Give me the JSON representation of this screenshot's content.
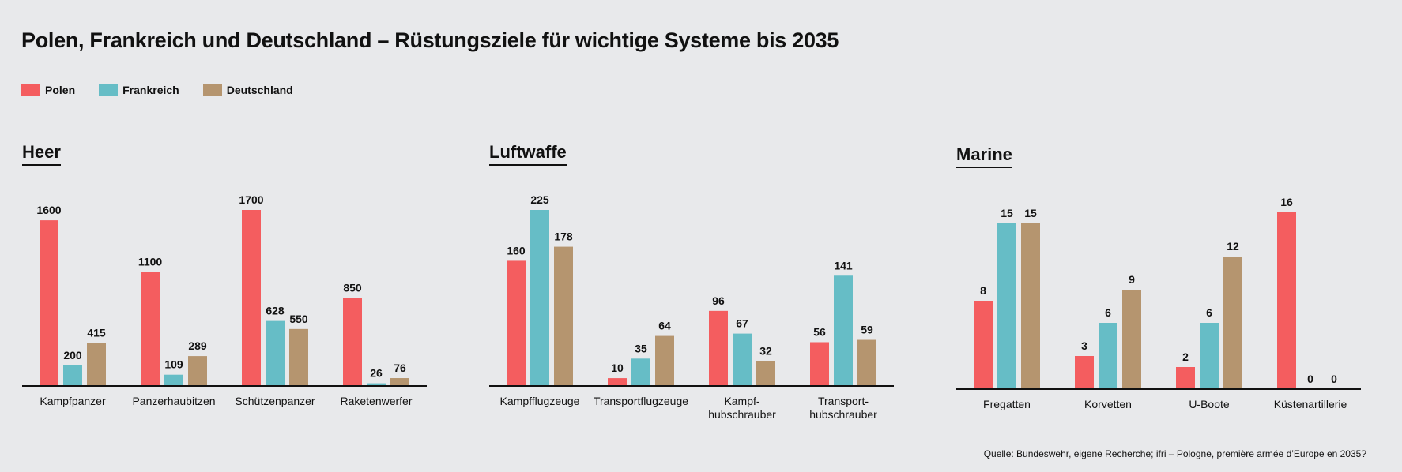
{
  "title": "Polen, Frankreich und Deutschland – Rüstungsziele für wichtige Systeme bis 2035",
  "legend": [
    {
      "label": "Polen",
      "color": "#f45d5f"
    },
    {
      "label": "Frankreich",
      "color": "#66bdc6"
    },
    {
      "label": "Deutschland",
      "color": "#b5956f"
    }
  ],
  "panels": [
    {
      "title": "Heer"
    },
    {
      "title": "Luftwaffe"
    },
    {
      "title": "Marine"
    }
  ],
  "source": "Quelle: Bundeswehr, eigene Recherche; ifri – Pologne, première armée d’Europe en 2035?",
  "chart_data": [
    {
      "type": "bar",
      "title": "Heer",
      "categories": [
        [
          "Kampfpanzer"
        ],
        [
          "Panzerhaubitzen"
        ],
        [
          "Schützenpanzer"
        ],
        [
          "Raketenwerfer"
        ]
      ],
      "series": [
        {
          "name": "Polen",
          "values": [
            1600,
            1100,
            1700,
            850
          ]
        },
        {
          "name": "Frankreich",
          "values": [
            200,
            109,
            628,
            26
          ]
        },
        {
          "name": "Deutschland",
          "values": [
            415,
            289,
            550,
            76
          ]
        }
      ]
    },
    {
      "type": "bar",
      "title": "Luftwaffe",
      "categories": [
        [
          "Kampfflugzeuge"
        ],
        [
          "Transportflugzeuge"
        ],
        [
          "Kampf-",
          "hubschrauber"
        ],
        [
          "Transport-",
          "hubschrauber"
        ]
      ],
      "series": [
        {
          "name": "Polen",
          "values": [
            160,
            10,
            96,
            56
          ]
        },
        {
          "name": "Frankreich",
          "values": [
            225,
            35,
            67,
            141
          ]
        },
        {
          "name": "Deutschland",
          "values": [
            178,
            64,
            32,
            59
          ]
        }
      ]
    },
    {
      "type": "bar",
      "title": "Marine",
      "categories": [
        [
          "Fregatten"
        ],
        [
          "Korvetten"
        ],
        [
          "U-Boote"
        ],
        [
          "Küstenartillerie"
        ]
      ],
      "series": [
        {
          "name": "Polen",
          "values": [
            8,
            3,
            2,
            16
          ]
        },
        {
          "name": "Frankreich",
          "values": [
            15,
            6,
            6,
            0
          ]
        },
        {
          "name": "Deutschland",
          "values": [
            15,
            9,
            12,
            0
          ]
        }
      ]
    }
  ]
}
